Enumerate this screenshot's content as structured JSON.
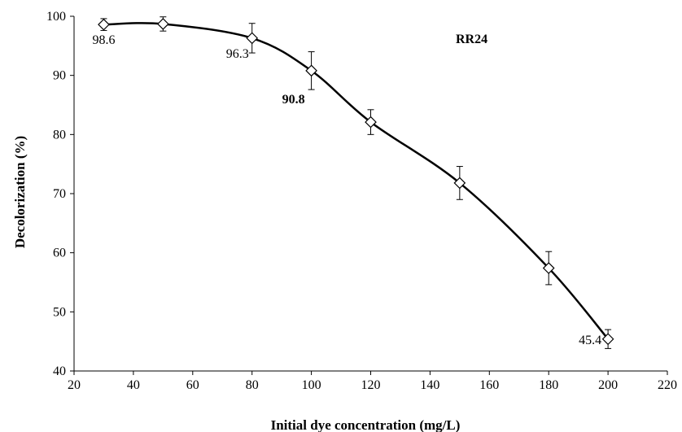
{
  "chart_data": {
    "type": "line",
    "xlabel": "Initial dye concentration (mg/L)",
    "ylabel": "Decolorization (%)",
    "xlim": [
      20,
      220
    ],
    "ylim": [
      40,
      100
    ],
    "xticks": [
      20,
      40,
      60,
      80,
      100,
      120,
      140,
      160,
      180,
      200,
      220
    ],
    "yticks": [
      40,
      50,
      60,
      70,
      80,
      90,
      100
    ],
    "grid": false,
    "legend": "none",
    "marker": "diamond",
    "line_style": "smooth",
    "series_label": "RR24",
    "series": [
      {
        "x": [
          30,
          50,
          80,
          100,
          120,
          150,
          180,
          200
        ],
        "y": [
          98.6,
          98.7,
          96.3,
          90.8,
          82.1,
          71.8,
          57.4,
          45.4
        ],
        "error": [
          1.0,
          1.2,
          2.5,
          3.2,
          2.1,
          2.8,
          2.8,
          1.6
        ]
      }
    ],
    "annotations": [
      {
        "text": "98.6",
        "x": 30,
        "y": 98.6,
        "bold": false
      },
      {
        "text": "96.3",
        "x": 80,
        "y": 96.3,
        "bold": false
      },
      {
        "text": "90.8",
        "x": 100,
        "y": 90.8,
        "bold": true
      },
      {
        "text": "45.4",
        "x": 200,
        "y": 45.4,
        "bold": false
      }
    ],
    "colors": {
      "line": "#000000",
      "marker_fill": "#ffffff",
      "marker_stroke": "#000000"
    }
  }
}
